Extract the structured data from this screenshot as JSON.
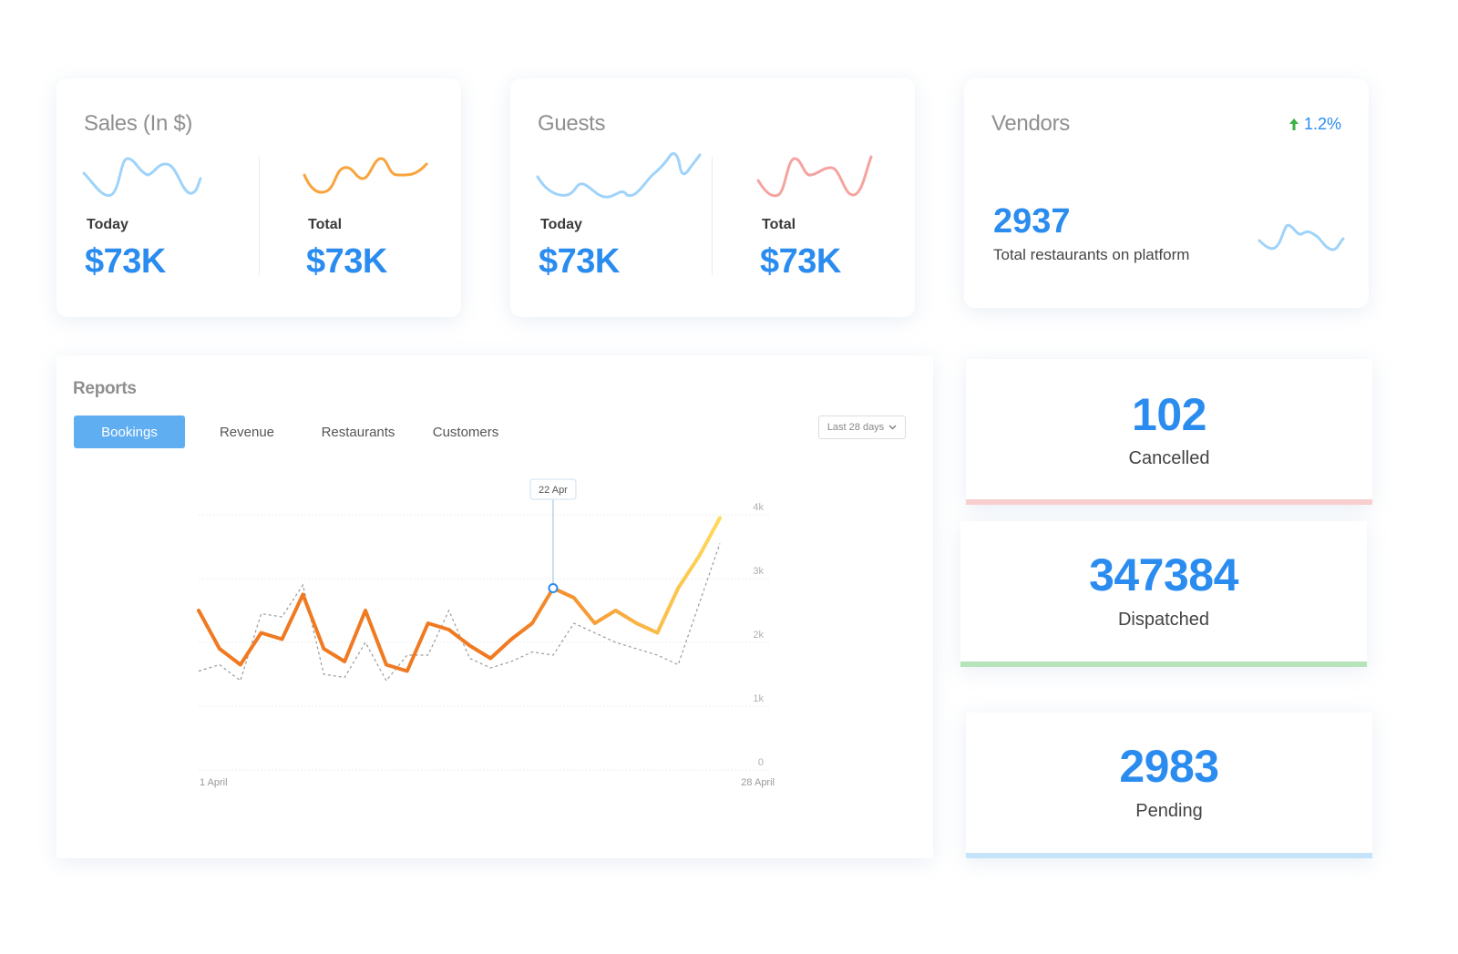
{
  "sales": {
    "title": "Sales (In $)",
    "today_label": "Today",
    "today_value": "$73K",
    "total_label": "Total",
    "total_value": "$73K"
  },
  "guests": {
    "title": "Guests",
    "today_label": "Today",
    "today_value": "$73K",
    "total_label": "Total",
    "total_value": "$73K"
  },
  "vendors": {
    "title": "Vendors",
    "trend": "1.2%",
    "trend_icon": "arrow-up-icon",
    "count": "2937",
    "caption": "Total restaurants on platform"
  },
  "reports": {
    "title": "Reports",
    "tabs": [
      {
        "label": "Bookings",
        "active": true
      },
      {
        "label": "Revenue",
        "active": false
      },
      {
        "label": "Restaurants",
        "active": false
      },
      {
        "label": "Customers",
        "active": false
      }
    ],
    "range_select": "Last 28 days",
    "tooltip": "22 Apr"
  },
  "stats": {
    "cancelled": {
      "value": "102",
      "label": "Cancelled"
    },
    "dispatched": {
      "value": "347384",
      "label": "Dispatched"
    },
    "pending": {
      "value": "2983",
      "label": "Pending"
    }
  },
  "colors": {
    "accent": "#2b8cf0",
    "tab_active": "#60aef2",
    "cancelled_bar": "#f7cfcf",
    "dispatched_bar": "#b6e3b9",
    "pending_bar": "#c5e4f9",
    "line_start": "#f07a22",
    "line_end": "#ffd95a"
  },
  "chart_data": {
    "type": "line",
    "x_labels": [
      "1 April",
      "28 April"
    ],
    "y_ticks": [
      "4k",
      "3k",
      "2k",
      "1k",
      "0"
    ],
    "ylim": [
      0,
      4000
    ],
    "highlight_index": 17,
    "highlight_label": "22 Apr",
    "series": [
      {
        "values": [
          2500,
          1900,
          1650,
          2150,
          2050,
          2750,
          1900,
          1700,
          2500,
          1650,
          1550,
          2300,
          2200,
          1950,
          1750,
          2050,
          2300,
          2850,
          2700,
          2300,
          2500,
          2300,
          2150,
          2850,
          3350,
          3950
        ]
      },
      {
        "dashed": true,
        "values": [
          1550,
          1650,
          1400,
          2450,
          2400,
          2900,
          1500,
          1450,
          2000,
          1400,
          1800,
          1800,
          2500,
          1750,
          1600,
          1700,
          1850,
          1800,
          2300,
          2150,
          2000,
          1900,
          1800,
          1650,
          2600,
          3550
        ]
      }
    ]
  }
}
